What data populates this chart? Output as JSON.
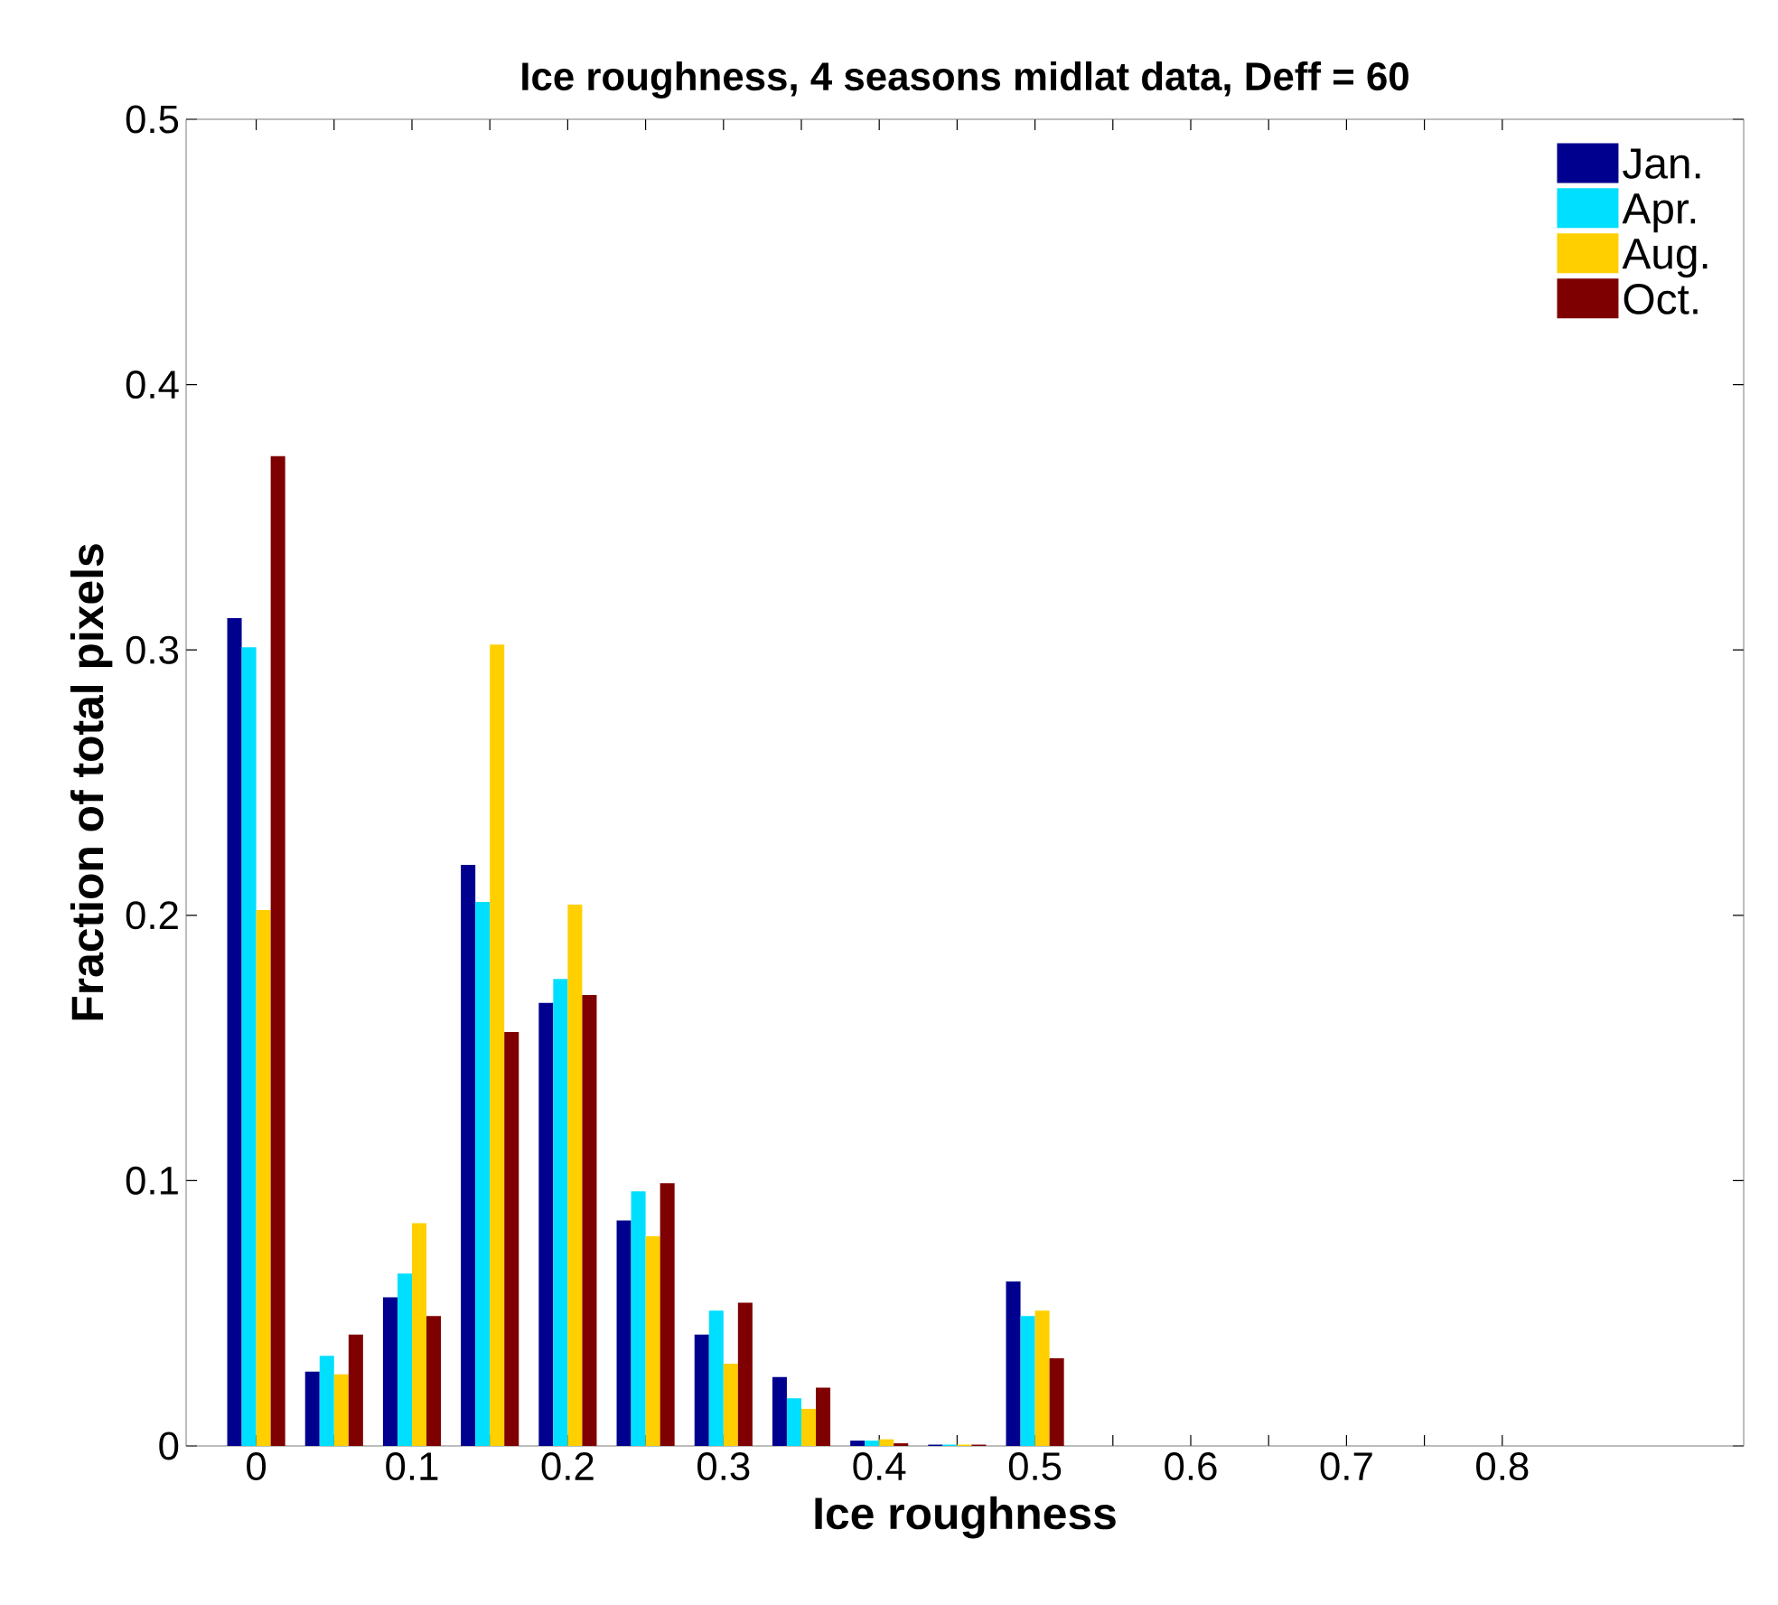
{
  "chart_data": {
    "type": "bar",
    "title": "Ice roughness, 4 seasons midlat data, Deff = 60",
    "xlabel": "Ice roughness",
    "ylabel": "Fraction of total pixels",
    "x": [
      0,
      0.05,
      0.1,
      0.15,
      0.2,
      0.25,
      0.3,
      0.35,
      0.4,
      0.45,
      0.5
    ],
    "series": [
      {
        "name": "Jan.",
        "color": "#00008f",
        "values": [
          0.312,
          0.028,
          0.056,
          0.219,
          0.167,
          0.085,
          0.042,
          0.026,
          0.002,
          0.0005,
          0.062
        ]
      },
      {
        "name": "Apr.",
        "color": "#00dfff",
        "values": [
          0.301,
          0.034,
          0.065,
          0.205,
          0.176,
          0.096,
          0.051,
          0.018,
          0.002,
          0.0005,
          0.049
        ]
      },
      {
        "name": "Aug.",
        "color": "#ffcf00",
        "values": [
          0.202,
          0.027,
          0.084,
          0.302,
          0.204,
          0.079,
          0.031,
          0.014,
          0.0025,
          0.0005,
          0.051
        ]
      },
      {
        "name": "Oct.",
        "color": "#7f0000",
        "values": [
          0.373,
          0.042,
          0.049,
          0.156,
          0.17,
          0.099,
          0.054,
          0.022,
          0.001,
          0.0005,
          0.033
        ]
      }
    ],
    "xlim": [
      -0.045,
      0.955
    ],
    "ylim": [
      0,
      0.5
    ],
    "xticks": [
      0,
      {
        "value": 0.05,
        "label": null
      },
      0.1,
      {
        "value": 0.15,
        "label": null
      },
      0.2,
      {
        "value": 0.25,
        "label": null
      },
      0.3,
      {
        "value": 0.35,
        "label": null
      },
      0.4,
      {
        "value": 0.45,
        "label": null
      },
      0.5,
      {
        "value": 0.55,
        "label": null
      },
      0.6,
      {
        "value": 0.65,
        "label": null
      },
      0.7,
      {
        "value": 0.75,
        "label": null
      },
      0.8
    ],
    "yticks": [
      0,
      0.1,
      0.2,
      0.3,
      0.4,
      0.5
    ],
    "legend": "top right",
    "grid": false
  }
}
